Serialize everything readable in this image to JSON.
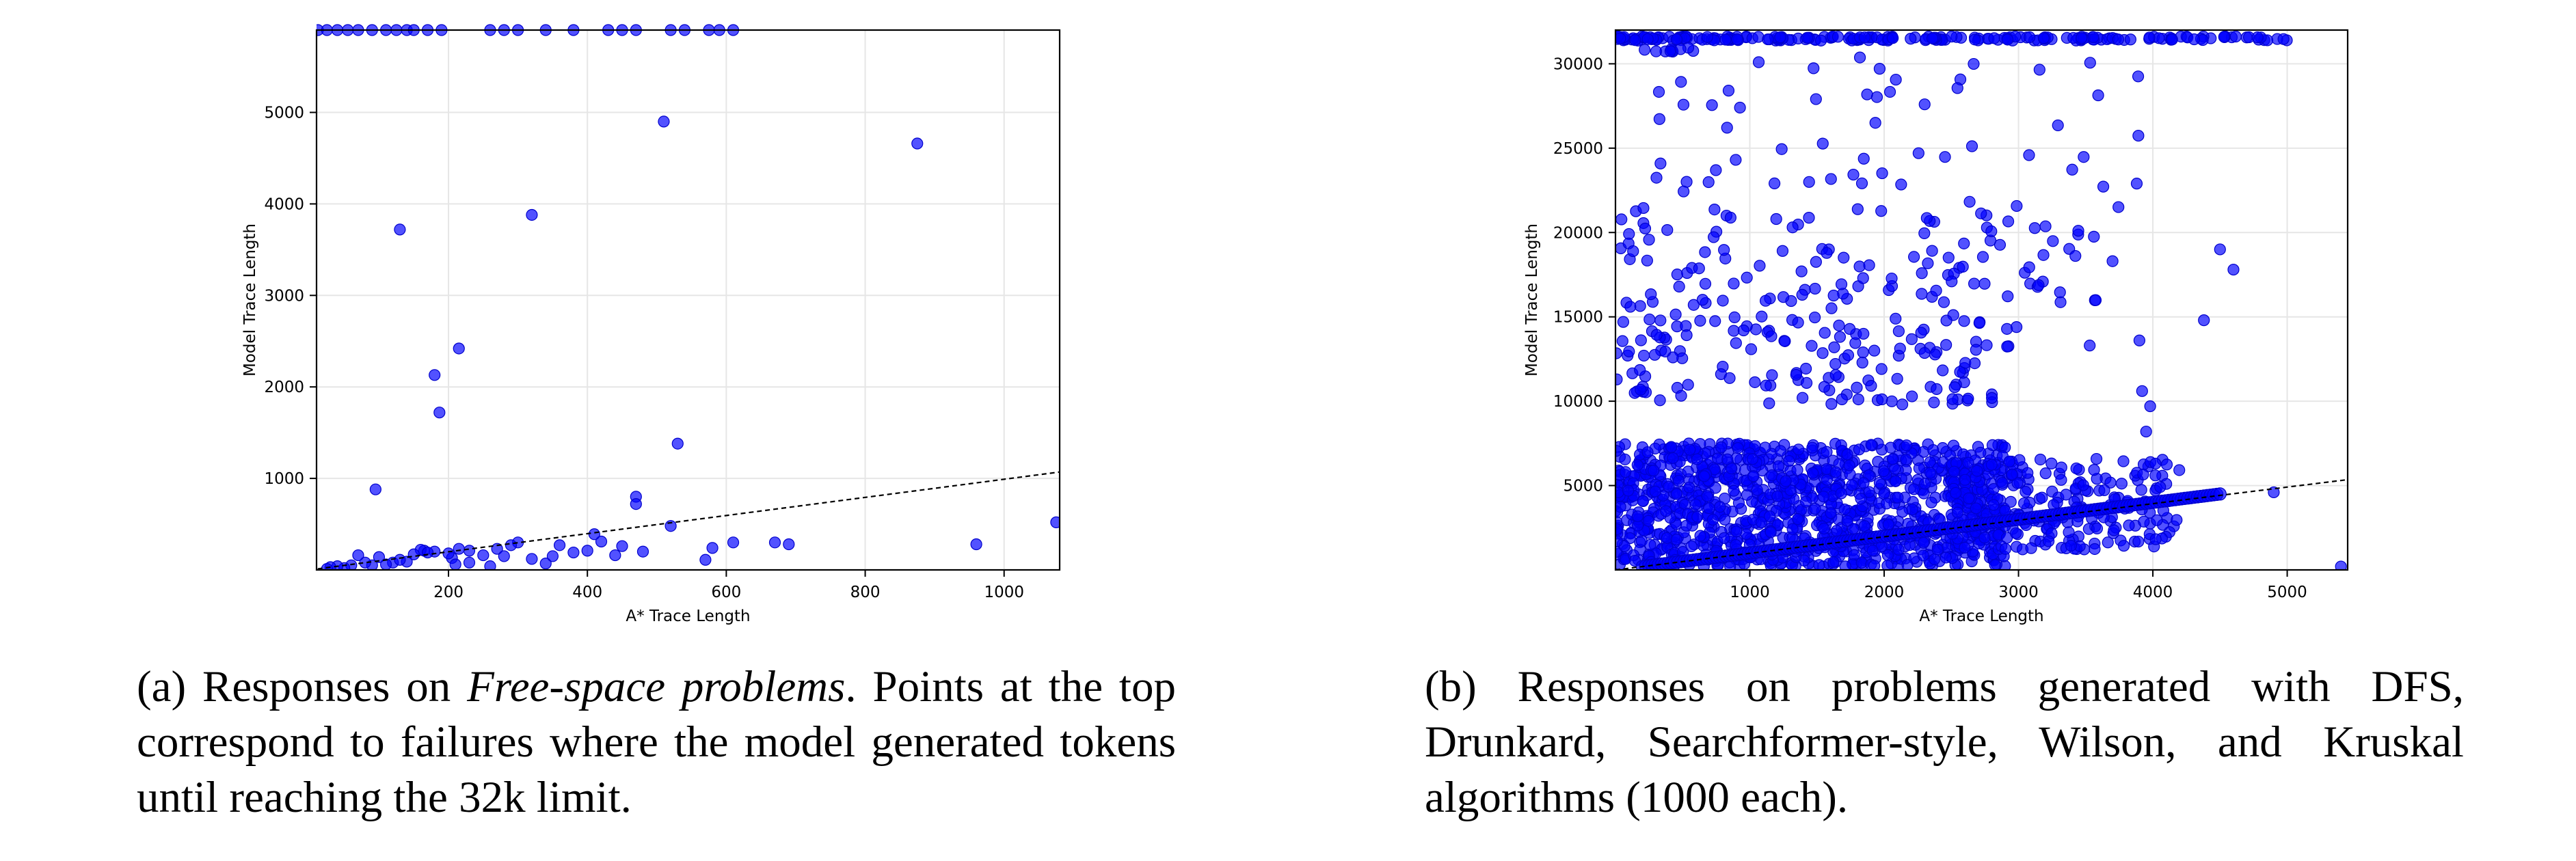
{
  "chart_data": [
    {
      "id": "a",
      "type": "scatter",
      "xlabel": "A* Trace Length",
      "ylabel": "Model Trace Length",
      "xlim": [
        10,
        1080
      ],
      "ylim": [
        0,
        5900
      ],
      "xticks": [
        200,
        400,
        600,
        800,
        1000
      ],
      "yticks": [
        1000,
        2000,
        3000,
        4000,
        5000
      ],
      "grid": true,
      "color": "#0000ff",
      "reference_line": {
        "from": [
          0,
          0
        ],
        "to": [
          1080,
          1070
        ],
        "style": "dashed"
      },
      "points": [
        [
          95,
          880
        ],
        [
          130,
          3720
        ],
        [
          180,
          2130
        ],
        [
          187,
          1720
        ],
        [
          215,
          2420
        ],
        [
          320,
          3880
        ],
        [
          510,
          4900
        ],
        [
          875,
          4660
        ],
        [
          530,
          1380
        ],
        [
          470,
          800
        ],
        [
          470,
          720
        ],
        [
          520,
          480
        ],
        [
          1075,
          520
        ],
        [
          960,
          280
        ],
        [
          690,
          280
        ],
        [
          670,
          300
        ],
        [
          610,
          300
        ],
        [
          580,
          240
        ],
        [
          570,
          110
        ],
        [
          480,
          200
        ],
        [
          440,
          160
        ],
        [
          420,
          310
        ],
        [
          410,
          390
        ],
        [
          380,
          190
        ],
        [
          360,
          270
        ],
        [
          340,
          70
        ],
        [
          300,
          300
        ],
        [
          290,
          270
        ],
        [
          270,
          230
        ],
        [
          250,
          160
        ],
        [
          230,
          210
        ],
        [
          215,
          230
        ],
        [
          205,
          130
        ],
        [
          180,
          200
        ],
        [
          165,
          210
        ],
        [
          160,
          220
        ],
        [
          150,
          170
        ],
        [
          140,
          90
        ],
        [
          120,
          80
        ],
        [
          110,
          60
        ],
        [
          90,
          50
        ],
        [
          80,
          80
        ],
        [
          70,
          160
        ],
        [
          60,
          50
        ],
        [
          50,
          20
        ],
        [
          40,
          40
        ],
        [
          30,
          30
        ],
        [
          25,
          10
        ],
        [
          210,
          60
        ],
        [
          230,
          80
        ],
        [
          260,
          40
        ],
        [
          320,
          120
        ],
        [
          350,
          150
        ],
        [
          400,
          210
        ],
        [
          450,
          260
        ],
        [
          100,
          140
        ],
        [
          130,
          110
        ],
        [
          170,
          190
        ],
        [
          200,
          180
        ],
        [
          280,
          150
        ]
      ],
      "top_points": [
        [
          12,
          5900
        ],
        [
          25,
          5900
        ],
        [
          40,
          5900
        ],
        [
          55,
          5900
        ],
        [
          70,
          5900
        ],
        [
          90,
          5900
        ],
        [
          110,
          5900
        ],
        [
          125,
          5900
        ],
        [
          140,
          5900
        ],
        [
          150,
          5900
        ],
        [
          170,
          5900
        ],
        [
          190,
          5900
        ],
        [
          260,
          5900
        ],
        [
          280,
          5900
        ],
        [
          300,
          5900
        ],
        [
          340,
          5900
        ],
        [
          380,
          5900
        ],
        [
          430,
          5900
        ],
        [
          450,
          5900
        ],
        [
          470,
          5900
        ],
        [
          520,
          5900
        ],
        [
          540,
          5900
        ],
        [
          575,
          5900
        ],
        [
          590,
          5900
        ],
        [
          610,
          5900
        ]
      ]
    },
    {
      "id": "b",
      "type": "scatter",
      "xlabel": "A* Trace Length",
      "ylabel": "Model Trace Length",
      "xlim": [
        0,
        5450
      ],
      "ylim": [
        0,
        32000
      ],
      "xticks": [
        1000,
        2000,
        3000,
        4000,
        5000
      ],
      "yticks": [
        5000,
        10000,
        15000,
        20000,
        25000,
        30000
      ],
      "grid": true,
      "color": "#0000ff",
      "reference_line": {
        "from": [
          0,
          0
        ],
        "to": [
          5450,
          5350
        ],
        "style": "dashed"
      },
      "cap_value": 31500,
      "cap_x_range": [
        0,
        5000
      ],
      "clusters": [
        {
          "x": [
            0,
            2900
          ],
          "y": [
            200,
            7500
          ],
          "n": 1100
        },
        {
          "x": [
            2500,
            4200
          ],
          "y": [
            1200,
            6600
          ],
          "n": 260
        },
        {
          "x": [
            0,
            3000
          ],
          "y": [
            9800,
            15200
          ],
          "n": 150
        },
        {
          "x": [
            0,
            3600
          ],
          "y": [
            15500,
            21500
          ],
          "n": 120
        },
        {
          "x": [
            300,
            3900
          ],
          "y": [
            21500,
            30500
          ],
          "n": 55
        }
      ],
      "extra_points": [
        [
          4380,
          14800
        ],
        [
          4600,
          17800
        ],
        [
          4500,
          19000
        ],
        [
          3880,
          22900
        ],
        [
          3700,
          18300
        ],
        [
          3530,
          13300
        ],
        [
          3900,
          13600
        ],
        [
          3920,
          10600
        ],
        [
          3980,
          9700
        ],
        [
          4900,
          4600
        ],
        [
          5400,
          200
        ],
        [
          3950,
          8200
        ]
      ],
      "diag_band": {
        "from": [
          200,
          200
        ],
        "to": [
          4500,
          4500
        ]
      }
    }
  ],
  "captions": {
    "a_prefix": "(a) Responses on ",
    "a_em": "Free-space problems",
    "a_rest": ". Points at the top correspond to failures where the model generated tokens until reaching the 32k limit.",
    "b_text": "(b) Responses on problems generated with DFS, Drunkard, Searchformer-style, Wilson, and Kruskal algorithms (1000 each)."
  }
}
